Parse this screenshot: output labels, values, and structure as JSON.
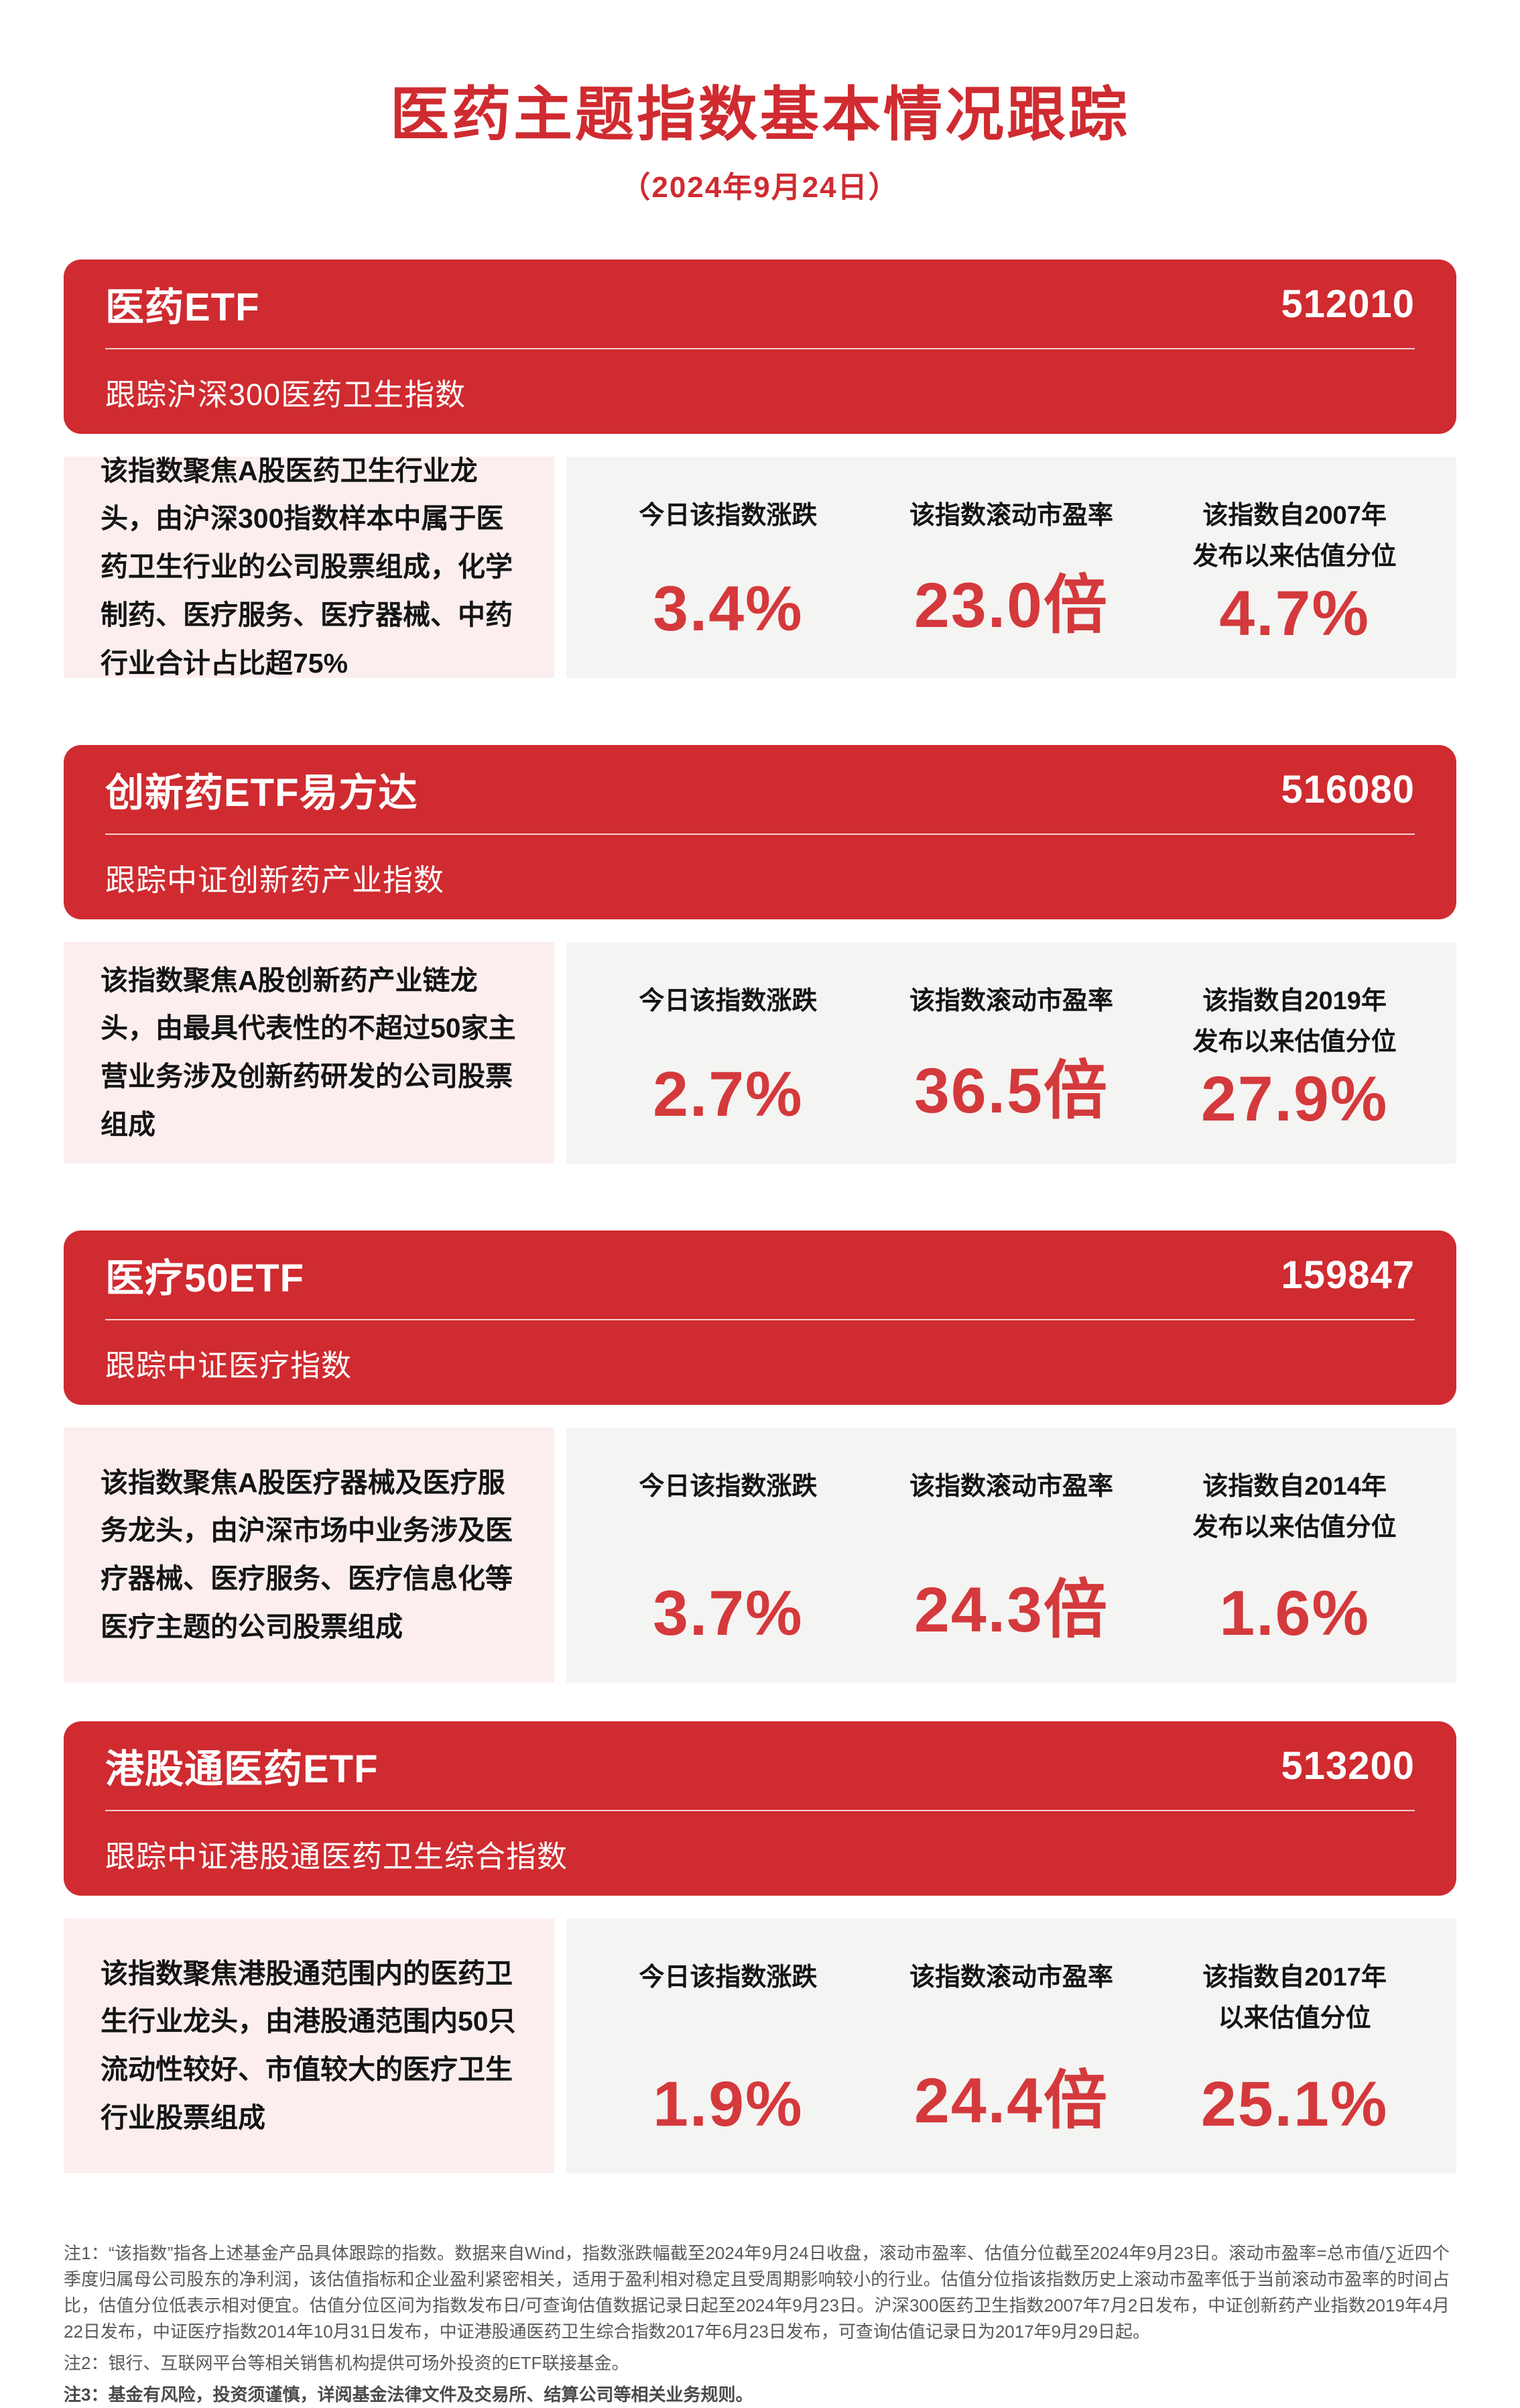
{
  "page": {
    "title": "医药主题指数基本情况跟踪",
    "date": "（2024年9月24日）",
    "colors": {
      "accent_red": "#CF2B30",
      "value_red": "#D4393C",
      "description_pink": "#FCEEEE",
      "metrics_gray": "#F4F4F2"
    }
  },
  "cards": [
    {
      "title": "医药ETF",
      "code": "512010",
      "tracking": "跟踪沪深300医药卫生指数",
      "description": "该指数聚焦A股医药卫生行业龙头，由沪深300指数样本中属于医药卫生行业的公司股票组成，化学制药、医疗服务、医疗器械、中药行业合计占比超75%",
      "metrics": [
        {
          "label1": "今日该指数涨跌",
          "label2": "",
          "value": "3.4%"
        },
        {
          "label1": "该指数滚动市盈率",
          "label2": "",
          "value": "23.0倍"
        },
        {
          "label1": "该指数自2007年",
          "label2": "发布以来估值分位",
          "value": "4.7%"
        }
      ]
    },
    {
      "title": "创新药ETF易方达",
      "code": "516080",
      "tracking": "跟踪中证创新药产业指数",
      "description": "该指数聚焦A股创新药产业链龙头，由最具代表性的不超过50家主营业务涉及创新药研发的公司股票组成",
      "metrics": [
        {
          "label1": "今日该指数涨跌",
          "label2": "",
          "value": "2.7%"
        },
        {
          "label1": "该指数滚动市盈率",
          "label2": "",
          "value": "36.5倍"
        },
        {
          "label1": "该指数自2019年",
          "label2": "发布以来估值分位",
          "value": "27.9%"
        }
      ]
    },
    {
      "title": "医疗50ETF",
      "code": "159847",
      "tracking": "跟踪中证医疗指数",
      "description": "该指数聚焦A股医疗器械及医疗服务龙头，由沪深市场中业务涉及医疗器械、医疗服务、医疗信息化等医疗主题的公司股票组成",
      "metrics": [
        {
          "label1": "今日该指数涨跌",
          "label2": "",
          "value": "3.7%"
        },
        {
          "label1": "该指数滚动市盈率",
          "label2": "",
          "value": "24.3倍"
        },
        {
          "label1": "该指数自2014年",
          "label2": "发布以来估值分位",
          "value": "1.6%"
        }
      ]
    },
    {
      "title": "港股通医药ETF",
      "code": "513200",
      "tracking": "跟踪中证港股通医药卫生综合指数",
      "description": "该指数聚焦港股通范围内的医药卫生行业龙头，由港股通范围内50只流动性较好、市值较大的医疗卫生行业股票组成",
      "metrics": [
        {
          "label1": "今日该指数涨跌",
          "label2": "",
          "value": "1.9%"
        },
        {
          "label1": "该指数滚动市盈率",
          "label2": "",
          "value": "24.4倍"
        },
        {
          "label1": "该指数自2017年",
          "label2": "以来估值分位",
          "value": "25.1%"
        }
      ]
    }
  ],
  "notes": [
    "注1：“该指数”指各上述基金产品具体跟踪的指数。数据来自Wind，指数涨跌幅截至2024年9月24日收盘，滚动市盈率、估值分位截至2024年9月23日。滚动市盈率=总市值/∑近四个季度归属母公司股东的净利润，该估值指标和企业盈利紧密相关，适用于盈利相对稳定且受周期影响较小的行业。估值分位指该指数历史上滚动市盈率低于当前滚动市盈率的时间占比，估值分位低表示相对便宜。估值分位区间为指数发布日/可查询估值数据记录日起至2024年9月23日。沪深300医药卫生指数2007年7月2日发布，中证创新药产业指数2019年4月22日发布，中证医疗指数2014年10月31日发布，中证港股通医药卫生综合指数2017年6月23日发布，可查询估值记录日为2017年9月29日起。",
    "注2：银行、互联网平台等相关销售机构提供可场外投资的ETF联接基金。",
    "注3：基金有风险，投资须谨慎，详阅基金法律文件及交易所、结算公司等相关业务规则。"
  ]
}
